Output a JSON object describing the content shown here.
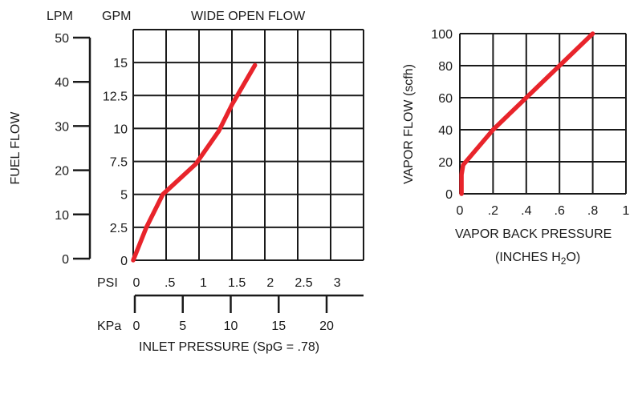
{
  "chart_data": [
    {
      "type": "line",
      "title": "WIDE OPEN FLOW",
      "ylabel": "FUEL FLOW",
      "xlabel": "INLET PRESSURE (SpG = .78)",
      "lpm_unit": "LPM",
      "gpm_unit": "GPM",
      "psi_unit": "PSI",
      "kpa_unit": "KPa",
      "lpm_ticks": [
        "50",
        "40",
        "30",
        "20",
        "10",
        "0"
      ],
      "gpm_ticks": [
        "15",
        "12.5",
        "10",
        "7.5",
        "5",
        "2.5",
        "0"
      ],
      "psi_ticks": [
        "0",
        ".5",
        "1",
        "1.5",
        "2",
        "2.5",
        "3"
      ],
      "kpa_ticks": [
        "0",
        "5",
        "10",
        "15",
        "20"
      ],
      "xlim_psi": [
        0,
        3.5
      ],
      "ylim_gpm": [
        0,
        17.5
      ],
      "grid": true,
      "series": [
        {
          "color": "#e8242b",
          "x": [
            0,
            0.2,
            0.45,
            0.95,
            1.3,
            1.5,
            1.85
          ],
          "y": [
            0,
            2.5,
            5,
            7.3,
            9.8,
            11.8,
            14.8
          ]
        }
      ]
    },
    {
      "type": "line",
      "ylabel": "VAPOR FLOW (scfh)",
      "xlabel": "VAPOR BACK PRESSURE",
      "xlabel2_prefix": "(INCHES H",
      "xlabel2_sub": "2",
      "xlabel2_suffix": "O)",
      "y_ticks": [
        "100",
        "80",
        "60",
        "40",
        "20",
        "0"
      ],
      "x_ticks": [
        "0",
        ".2",
        ".4",
        ".6",
        ".8",
        "1"
      ],
      "xlim": [
        0,
        1
      ],
      "ylim": [
        0,
        100
      ],
      "grid": true,
      "series": [
        {
          "color": "#e8242b",
          "x": [
            0.01,
            0.01,
            0.02,
            0.2,
            0.4,
            0.6,
            0.8
          ],
          "y": [
            0,
            12,
            18,
            40,
            60,
            80,
            100
          ]
        }
      ]
    }
  ]
}
